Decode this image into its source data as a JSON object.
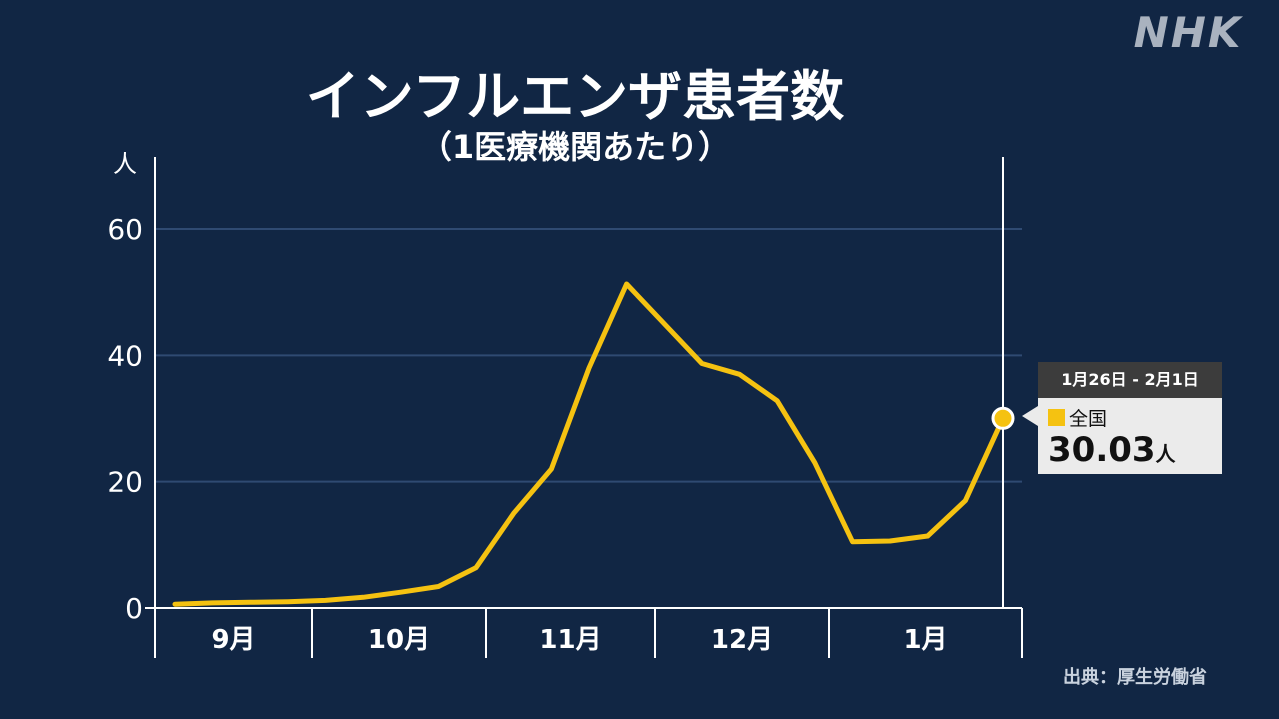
{
  "logo": "NHK",
  "source": "出典：厚生労働省",
  "tooltip": {
    "period": "1月26日 - 2月1日",
    "region": "全国",
    "value": "30.03",
    "unit": "人",
    "swatch_color": "#f5c211"
  },
  "chart_data": {
    "type": "line",
    "title": "インフルエンザ患者数",
    "subtitle": "（1医療機関あたり）",
    "ylabel": "人",
    "ylim": [
      0,
      60
    ],
    "yticks": [
      0,
      20,
      40,
      60
    ],
    "months": [
      "9月",
      "10月",
      "11月",
      "12月",
      "1月"
    ],
    "grid": true,
    "line_color": "#f5c211",
    "series": [
      {
        "values": [
          0.6,
          0.8,
          0.9,
          1.0,
          1.2,
          1.7,
          2.5,
          3.4,
          6.4,
          15.0,
          22.0,
          38.0,
          51.3,
          45.0,
          38.7,
          37.0,
          32.8,
          23.0,
          10.5,
          10.6,
          11.4,
          17.0,
          30.03
        ]
      }
    ]
  }
}
